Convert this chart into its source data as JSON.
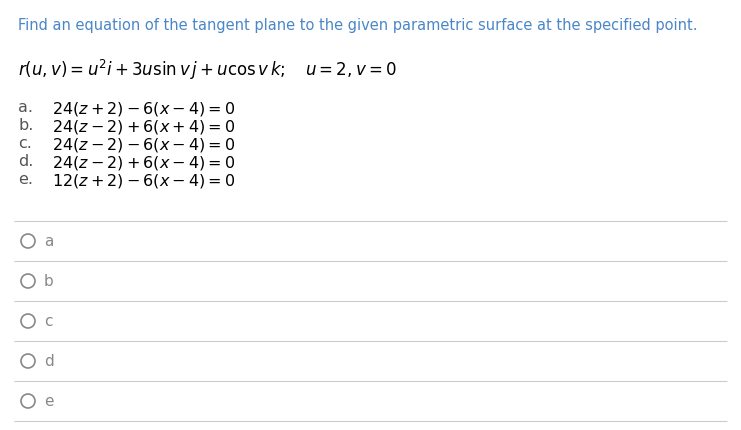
{
  "background_color": "#ffffff",
  "title_text": "Find an equation of the tangent plane to the given parametric surface at the specified point.",
  "title_color": "#4a86c8",
  "title_fontsize": 10.5,
  "formula_fontsize": 12.0,
  "formula_color": "#000000",
  "options": [
    {
      "label": "a.",
      "math": "24(z+2)-6(x-4)=0"
    },
    {
      "label": "b.",
      "math": "24(z-2)+6(x+4)=0"
    },
    {
      "label": "c.",
      "math": "24(z-2)-6(x-4)=0"
    },
    {
      "label": "d.",
      "math": "24(z-2)+6(x-4)=0"
    },
    {
      "label": "e.",
      "math": "12(z+2)-6(x-4)=0"
    }
  ],
  "options_fontsize": 11.5,
  "options_color": "#000000",
  "label_color": "#555555",
  "radio_labels": [
    "a",
    "b",
    "c",
    "d",
    "e"
  ],
  "radio_color": "#888888",
  "radio_fontsize": 11.0,
  "line_color": "#cccccc"
}
